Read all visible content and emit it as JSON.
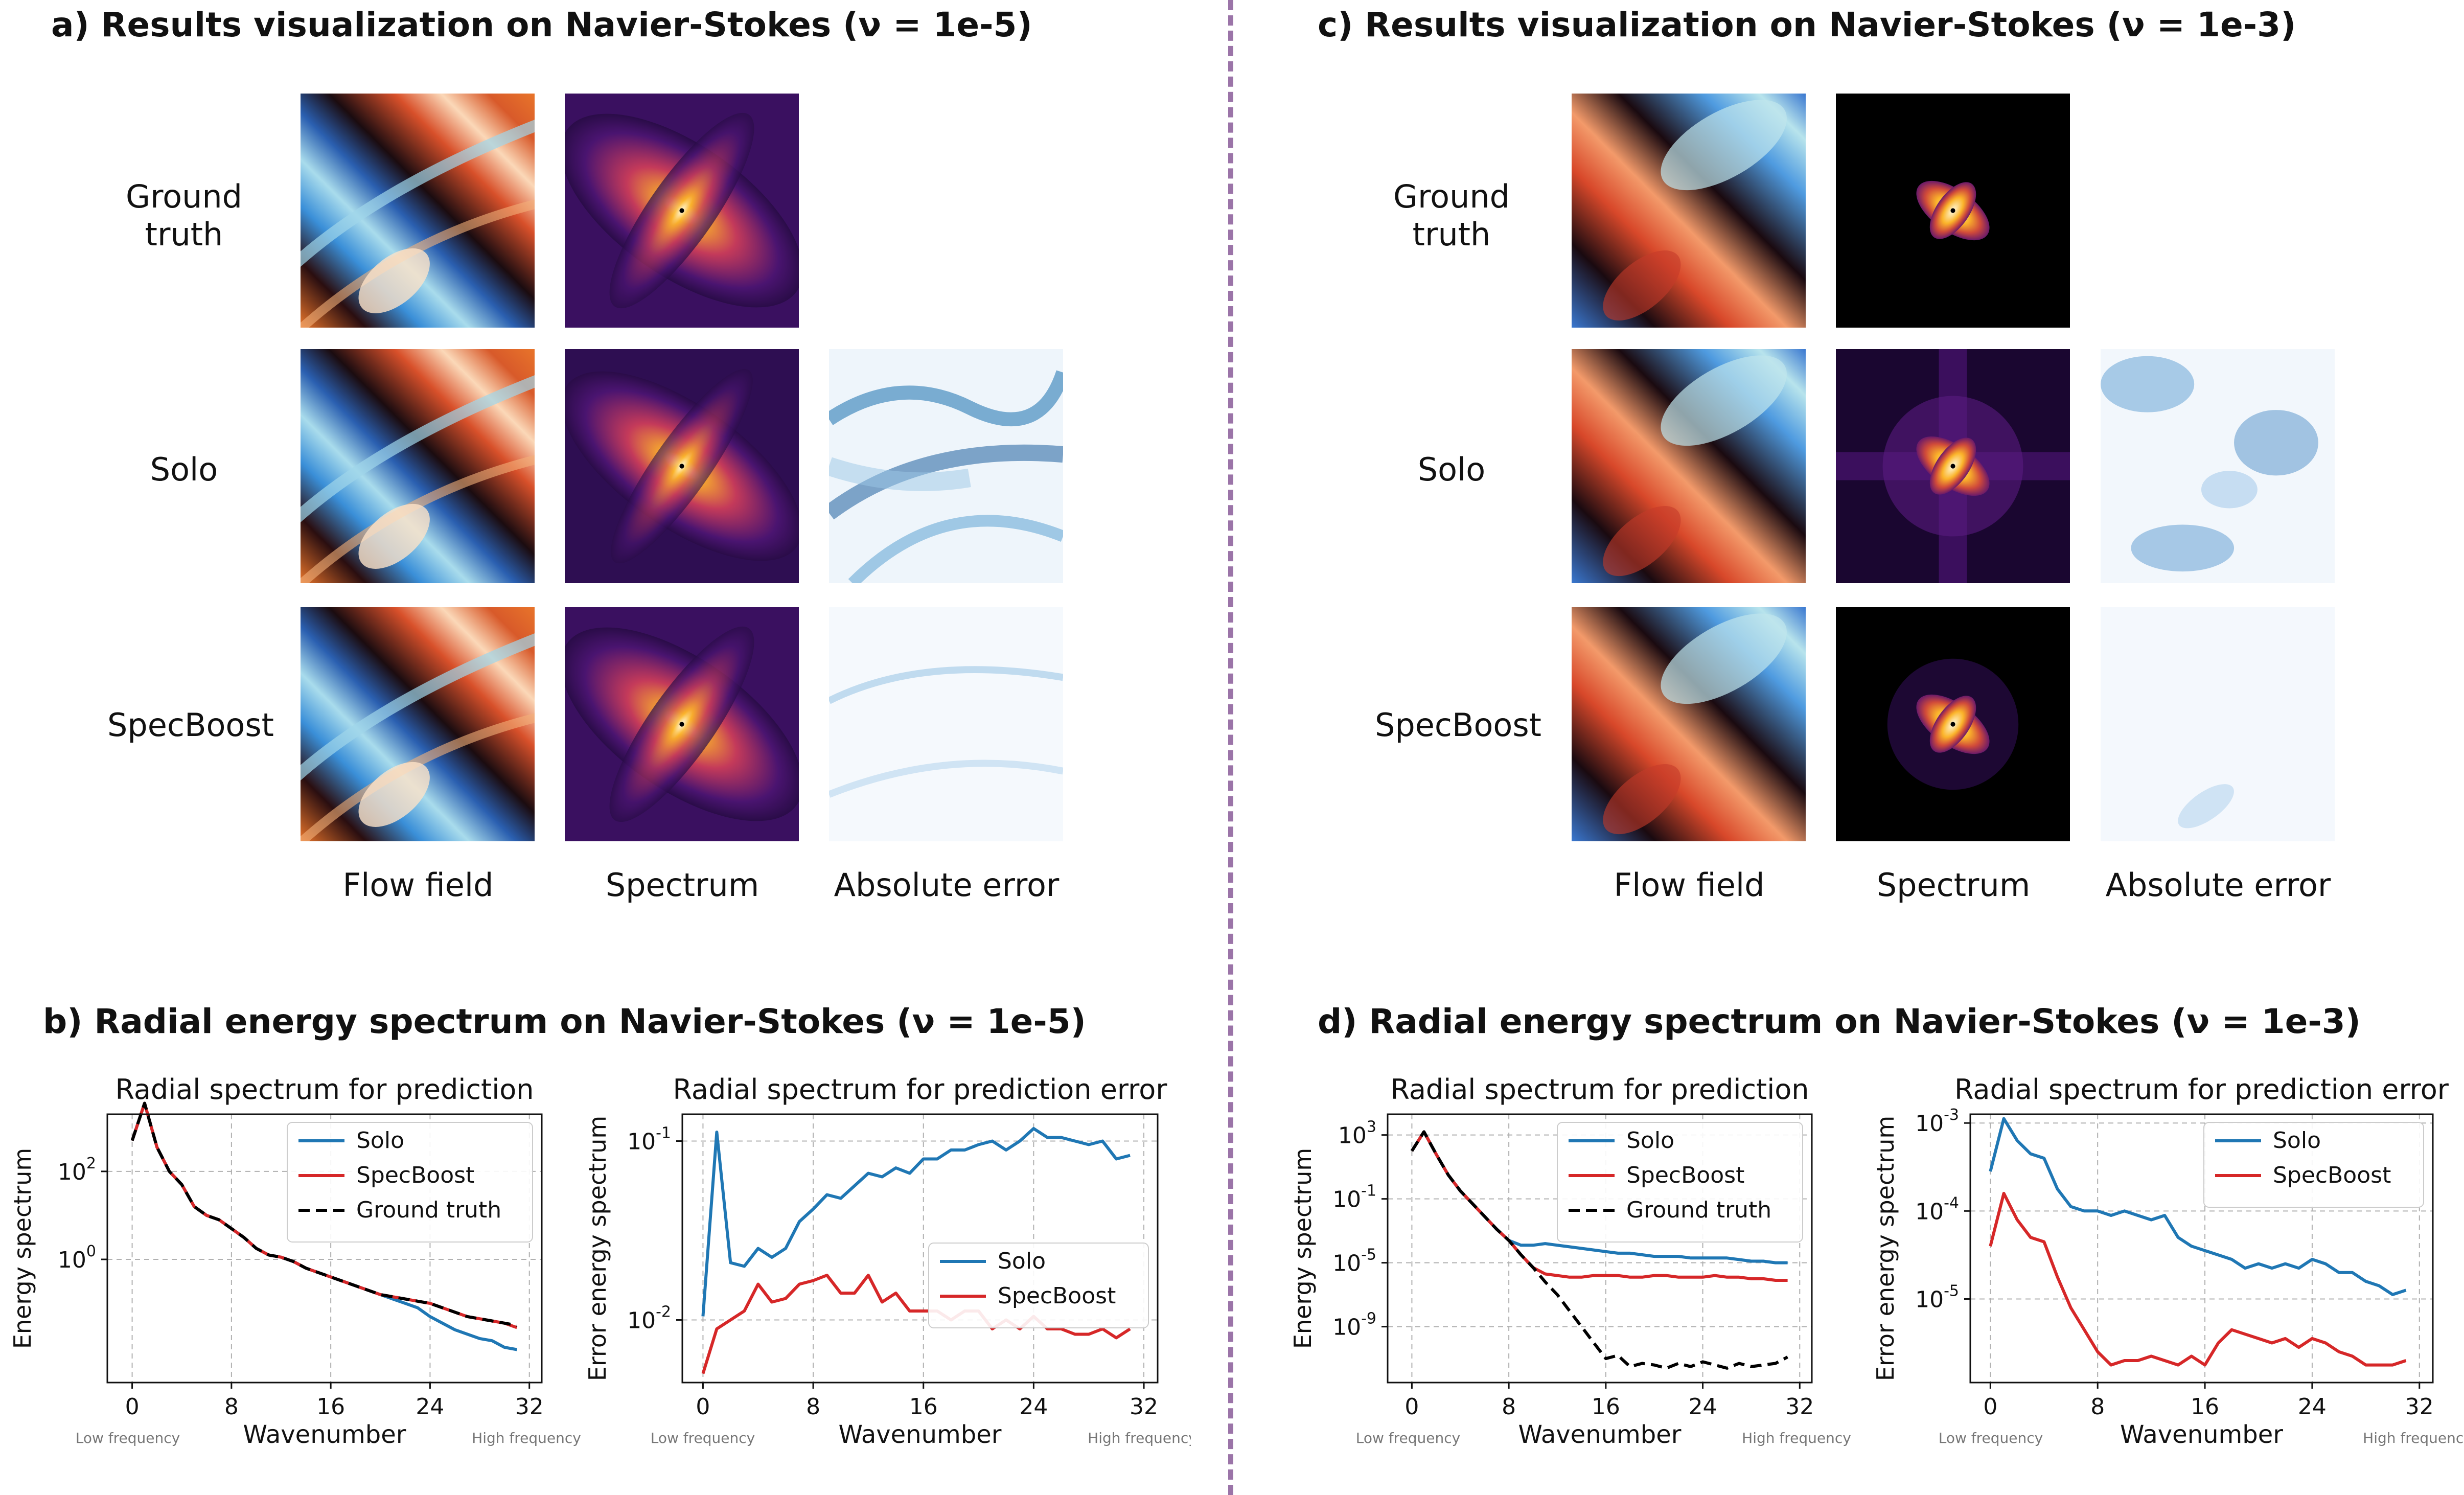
{
  "panel_a": {
    "title": "a) Results visualization on Navier-Stokes (ν = 1e-5)",
    "row_labels": [
      "Ground\ntruth",
      "Solo",
      "SpecBoost"
    ],
    "col_labels": [
      "Flow field",
      "Spectrum",
      "Absolute error"
    ]
  },
  "panel_c": {
    "title": "c) Results visualization on Navier-Stokes (ν = 1e-3)",
    "row_labels": [
      "Ground\ntruth",
      "Solo",
      "SpecBoost"
    ],
    "col_labels": [
      "Flow field",
      "Spectrum",
      "Absolute error"
    ]
  },
  "panel_b": {
    "title": "b) Radial energy spectrum on Navier-Stokes (ν = 1e-5)"
  },
  "panel_d": {
    "title": "d) Radial energy spectrum on Navier-Stokes (ν = 1e-3)"
  },
  "colors": {
    "solo": "#1f77b4",
    "specboost": "#d62728",
    "ground_truth": "#000000",
    "divider": "#9b74a8"
  },
  "chart_data": [
    {
      "type": "line",
      "yscale": "log",
      "title": "Radial spectrum for prediction",
      "xlabel": "Wavenumber",
      "ylabel": "Energy spectrum",
      "xlim": [
        -2,
        33
      ],
      "ylim_log10": [
        -2.8,
        3.3
      ],
      "xticks": [
        0,
        8,
        16,
        24,
        32
      ],
      "yticks": [
        {
          "v": 0,
          "t": "10^0"
        },
        {
          "v": 2,
          "t": "10^2"
        }
      ],
      "legend": "top-right",
      "freq_labels": [
        "Low frequency",
        "High frequency"
      ],
      "x": [
        0,
        1,
        2,
        3,
        4,
        5,
        6,
        7,
        8,
        9,
        10,
        11,
        12,
        13,
        14,
        15,
        16,
        17,
        18,
        19,
        20,
        21,
        22,
        23,
        24,
        25,
        26,
        27,
        28,
        29,
        30,
        31
      ],
      "series": [
        {
          "name": "Solo",
          "color": "#1f77b4",
          "dash": false,
          "log_values": [
            2.7,
            3.55,
            2.55,
            2.0,
            1.7,
            1.2,
            1.0,
            0.9,
            0.7,
            0.5,
            0.25,
            0.1,
            0.05,
            -0.05,
            -0.2,
            -0.3,
            -0.4,
            -0.5,
            -0.6,
            -0.7,
            -0.8,
            -0.9,
            -1.0,
            -1.1,
            -1.3,
            -1.45,
            -1.6,
            -1.7,
            -1.8,
            -1.85,
            -2.0,
            -2.05
          ]
        },
        {
          "name": "SpecBoost",
          "color": "#d62728",
          "dash": false,
          "log_values": [
            2.7,
            3.55,
            2.55,
            2.0,
            1.7,
            1.2,
            1.0,
            0.9,
            0.7,
            0.5,
            0.25,
            0.1,
            0.05,
            -0.05,
            -0.2,
            -0.3,
            -0.4,
            -0.5,
            -0.6,
            -0.7,
            -0.8,
            -0.85,
            -0.9,
            -0.95,
            -1.0,
            -1.1,
            -1.2,
            -1.3,
            -1.35,
            -1.4,
            -1.45,
            -1.55
          ]
        },
        {
          "name": "Ground truth",
          "color": "#000000",
          "dash": true,
          "log_values": [
            2.7,
            3.55,
            2.55,
            2.0,
            1.7,
            1.2,
            1.0,
            0.9,
            0.7,
            0.5,
            0.25,
            0.1,
            0.05,
            -0.05,
            -0.2,
            -0.3,
            -0.4,
            -0.5,
            -0.6,
            -0.7,
            -0.8,
            -0.85,
            -0.9,
            -0.95,
            -1.0,
            -1.1,
            -1.2,
            -1.3,
            -1.35,
            -1.4,
            -1.45,
            -1.5
          ]
        }
      ]
    },
    {
      "type": "line",
      "yscale": "log",
      "title": "Radial spectrum for prediction error",
      "xlabel": "Wavenumber",
      "ylabel": "Error energy spectrum",
      "xlim": [
        -1.5,
        33
      ],
      "ylim_log10": [
        -2.35,
        -0.85
      ],
      "xticks": [
        0,
        8,
        16,
        24,
        32
      ],
      "yticks": [
        {
          "v": -2,
          "t": "10^-2"
        },
        {
          "v": -1,
          "t": "10^-1"
        }
      ],
      "legend": "center-right",
      "freq_labels": [
        "Low frequency",
        "High frequency"
      ],
      "x": [
        0,
        1,
        2,
        3,
        4,
        5,
        6,
        7,
        8,
        9,
        10,
        11,
        12,
        13,
        14,
        15,
        16,
        17,
        18,
        19,
        20,
        21,
        22,
        23,
        24,
        25,
        26,
        27,
        28,
        29,
        30,
        31
      ],
      "series": [
        {
          "name": "Solo",
          "color": "#1f77b4",
          "dash": false,
          "log_values": [
            -1.98,
            -0.95,
            -1.68,
            -1.7,
            -1.6,
            -1.65,
            -1.6,
            -1.45,
            -1.38,
            -1.3,
            -1.32,
            -1.25,
            -1.18,
            -1.2,
            -1.15,
            -1.18,
            -1.1,
            -1.1,
            -1.05,
            -1.05,
            -1.02,
            -1.0,
            -1.05,
            -1.0,
            -0.93,
            -0.98,
            -0.98,
            -1.0,
            -1.02,
            -1.0,
            -1.1,
            -1.08
          ]
        },
        {
          "name": "SpecBoost",
          "color": "#d62728",
          "dash": false,
          "log_values": [
            -2.3,
            -2.05,
            -2.0,
            -1.95,
            -1.8,
            -1.9,
            -1.88,
            -1.8,
            -1.78,
            -1.75,
            -1.85,
            -1.85,
            -1.75,
            -1.9,
            -1.85,
            -1.95,
            -1.95,
            -1.95,
            -2.0,
            -1.95,
            -1.95,
            -2.05,
            -2.0,
            -2.05,
            -1.98,
            -2.05,
            -2.05,
            -2.08,
            -2.08,
            -2.05,
            -2.1,
            -2.05
          ]
        }
      ]
    },
    {
      "type": "line",
      "yscale": "log",
      "title": "Radial spectrum for prediction",
      "xlabel": "Wavenumber",
      "ylabel": "Energy spectrum",
      "xlim": [
        -2,
        33
      ],
      "ylim_log10": [
        -12.5,
        4.3
      ],
      "xticks": [
        0,
        8,
        16,
        24,
        32
      ],
      "yticks": [
        {
          "v": -9,
          "t": "10^-9"
        },
        {
          "v": -5,
          "t": "10^-5"
        },
        {
          "v": -1,
          "t": "10^-1"
        },
        {
          "v": 3,
          "t": "10^3"
        }
      ],
      "legend": "top-right",
      "freq_labels": [
        "Low frequency",
        "High frequency"
      ],
      "x": [
        0,
        1,
        2,
        3,
        4,
        5,
        6,
        7,
        8,
        9,
        10,
        11,
        12,
        13,
        14,
        15,
        16,
        17,
        18,
        19,
        20,
        21,
        22,
        23,
        24,
        25,
        26,
        27,
        28,
        29,
        30,
        31
      ],
      "series": [
        {
          "name": "Solo",
          "color": "#1f77b4",
          "dash": false,
          "log_values": [
            2.0,
            3.2,
            1.8,
            0.5,
            -0.5,
            -1.3,
            -2.1,
            -2.9,
            -3.6,
            -3.9,
            -3.9,
            -3.8,
            -3.9,
            -4.0,
            -4.1,
            -4.2,
            -4.3,
            -4.4,
            -4.4,
            -4.5,
            -4.6,
            -4.6,
            -4.6,
            -4.7,
            -4.7,
            -4.7,
            -4.7,
            -4.8,
            -4.9,
            -4.9,
            -5.0,
            -5.0
          ]
        },
        {
          "name": "SpecBoost",
          "color": "#d62728",
          "dash": false,
          "log_values": [
            2.0,
            3.2,
            1.8,
            0.5,
            -0.5,
            -1.3,
            -2.1,
            -2.9,
            -3.6,
            -4.5,
            -5.3,
            -5.7,
            -5.8,
            -5.9,
            -5.9,
            -5.8,
            -5.8,
            -5.8,
            -5.9,
            -5.9,
            -5.8,
            -5.8,
            -5.9,
            -5.9,
            -5.9,
            -5.8,
            -5.9,
            -5.9,
            -6.0,
            -6.0,
            -6.1,
            -6.1
          ]
        },
        {
          "name": "Ground truth",
          "color": "#000000",
          "dash": true,
          "log_values": [
            2.0,
            3.2,
            1.8,
            0.5,
            -0.5,
            -1.3,
            -2.1,
            -2.9,
            -3.6,
            -4.5,
            -5.3,
            -6.2,
            -7.0,
            -8.0,
            -9.0,
            -10.0,
            -11.0,
            -10.8,
            -11.5,
            -11.3,
            -11.4,
            -11.6,
            -11.3,
            -11.5,
            -11.2,
            -11.4,
            -11.6,
            -11.3,
            -11.5,
            -11.4,
            -11.3,
            -10.9
          ]
        }
      ]
    },
    {
      "type": "line",
      "yscale": "log",
      "title": "Radial spectrum for prediction error",
      "xlabel": "Wavenumber",
      "ylabel": "Error energy spectrum",
      "xlim": [
        -1.5,
        33
      ],
      "ylim_log10": [
        -5.95,
        -2.9
      ],
      "xticks": [
        0,
        8,
        16,
        24,
        32
      ],
      "yticks": [
        {
          "v": -5,
          "t": "10^-5"
        },
        {
          "v": -4,
          "t": "10^-4"
        },
        {
          "v": -3,
          "t": "10^-3"
        }
      ],
      "legend": "top-right",
      "freq_labels": [
        "Low frequency",
        "High frequency"
      ],
      "x": [
        0,
        1,
        2,
        3,
        4,
        5,
        6,
        7,
        8,
        9,
        10,
        11,
        12,
        13,
        14,
        15,
        16,
        17,
        18,
        19,
        20,
        21,
        22,
        23,
        24,
        25,
        26,
        27,
        28,
        29,
        30,
        31
      ],
      "series": [
        {
          "name": "Solo",
          "color": "#1f77b4",
          "dash": false,
          "log_values": [
            -3.55,
            -2.95,
            -3.2,
            -3.35,
            -3.4,
            -3.75,
            -3.95,
            -4.0,
            -4.0,
            -4.05,
            -4.0,
            -4.05,
            -4.1,
            -4.05,
            -4.3,
            -4.4,
            -4.45,
            -4.5,
            -4.55,
            -4.65,
            -4.6,
            -4.65,
            -4.6,
            -4.65,
            -4.55,
            -4.6,
            -4.7,
            -4.7,
            -4.8,
            -4.85,
            -4.95,
            -4.9
          ]
        },
        {
          "name": "SpecBoost",
          "color": "#d62728",
          "dash": false,
          "log_values": [
            -4.4,
            -3.8,
            -4.1,
            -4.3,
            -4.35,
            -4.75,
            -5.1,
            -5.35,
            -5.6,
            -5.75,
            -5.7,
            -5.7,
            -5.65,
            -5.7,
            -5.75,
            -5.65,
            -5.75,
            -5.5,
            -5.35,
            -5.4,
            -5.45,
            -5.5,
            -5.45,
            -5.55,
            -5.45,
            -5.5,
            -5.6,
            -5.65,
            -5.75,
            -5.75,
            -5.75,
            -5.7
          ]
        }
      ]
    }
  ]
}
